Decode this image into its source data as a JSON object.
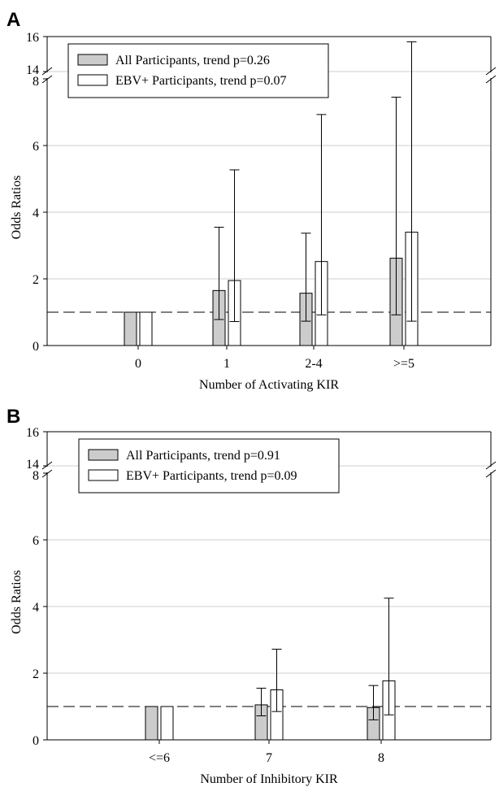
{
  "chart_data": [
    {
      "panel": "A",
      "type": "bar",
      "categories": [
        "0",
        "1",
        "2-4",
        ">=5"
      ],
      "xlabel": "Number of Activating KIR",
      "ylabel": "Odds Ratios",
      "ylim": [
        0,
        16
      ],
      "axis_break": [
        8,
        14
      ],
      "yticks": [
        0,
        2,
        4,
        6,
        8,
        14,
        16
      ],
      "reference_line": 1,
      "grid": true,
      "legend_position": "top-left",
      "series": [
        {
          "name": "All Participants, trend p=0.26",
          "fill": "#cccccc",
          "values": [
            1,
            1.65,
            1.57,
            2.62
          ],
          "ci_low": [
            null,
            0.78,
            0.73,
            0.92
          ],
          "ci_high": [
            null,
            3.55,
            3.37,
            7.45
          ]
        },
        {
          "name": "EBV+ Participants, trend p=0.07",
          "fill": "#ffffff",
          "values": [
            1,
            1.95,
            2.52,
            3.4
          ],
          "ci_low": [
            null,
            0.72,
            0.92,
            0.73
          ],
          "ci_high": [
            null,
            5.27,
            6.93,
            15.7
          ]
        }
      ]
    },
    {
      "panel": "B",
      "type": "bar",
      "categories": [
        "<=6",
        "7",
        "8"
      ],
      "xlabel": "Number of Inhibitory KIR",
      "ylabel": "Odds Ratios",
      "ylim": [
        0,
        16
      ],
      "axis_break": [
        8,
        14
      ],
      "yticks": [
        0,
        2,
        4,
        6,
        8,
        14,
        16
      ],
      "reference_line": 1,
      "grid": true,
      "legend_position": "top-left",
      "series": [
        {
          "name": "All Participants, trend p=0.91",
          "fill": "#cccccc",
          "values": [
            1,
            1.05,
            0.97
          ],
          "ci_low": [
            null,
            0.72,
            0.6
          ],
          "ci_high": [
            null,
            1.55,
            1.63
          ]
        },
        {
          "name": "EBV+ Participants, trend p=0.09",
          "fill": "#ffffff",
          "values": [
            1,
            1.5,
            1.77
          ],
          "ci_low": [
            null,
            0.85,
            0.75
          ],
          "ci_high": [
            null,
            2.72,
            4.25
          ]
        }
      ]
    }
  ]
}
